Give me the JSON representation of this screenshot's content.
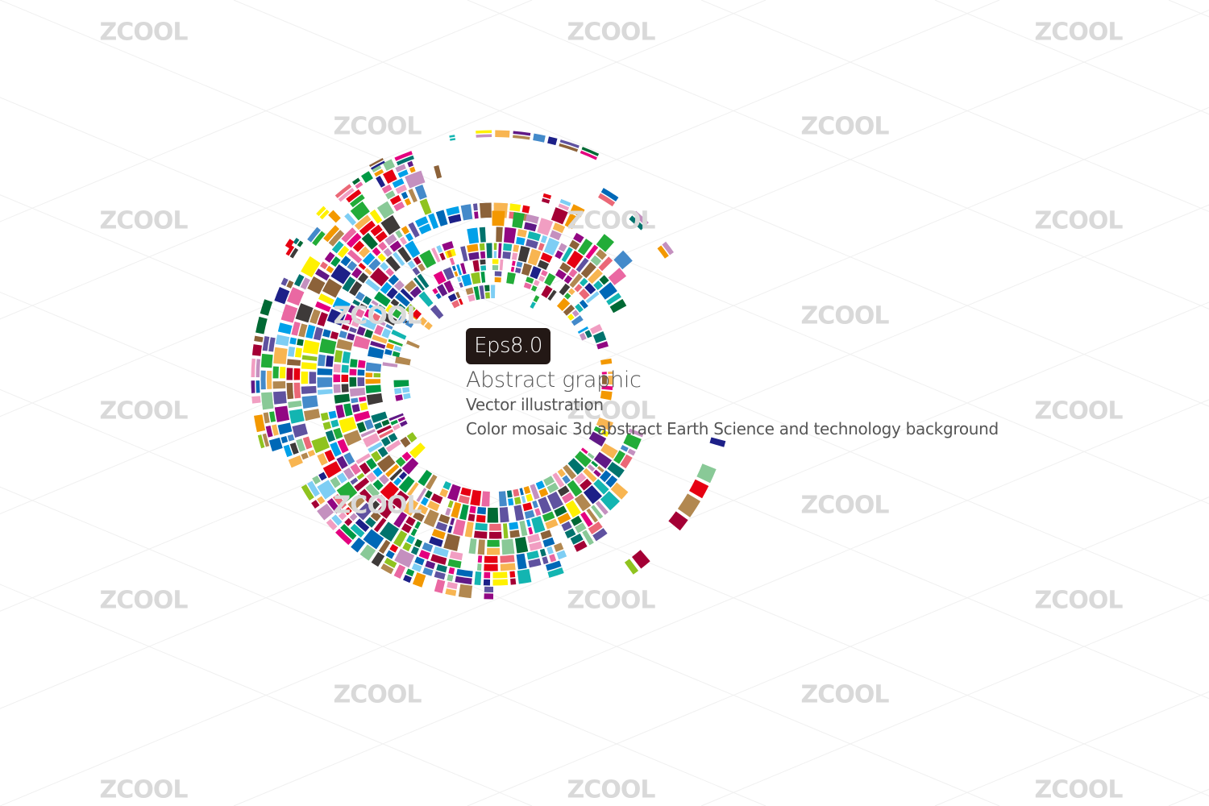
{
  "badge": "Eps8.0",
  "title": "Abstract graphic",
  "subtitle": "Vector illustration",
  "description": "Color mosaic 3d abstract Earth Science and technology background",
  "watermark": "ZCOOL",
  "palette": [
    "#e4007f",
    "#009944",
    "#0068b7",
    "#f39800",
    "#fff100",
    "#00a0e9",
    "#920783",
    "#8fc31f",
    "#e60012",
    "#1d2088",
    "#006934",
    "#a40035",
    "#00736d",
    "#601986",
    "#b28850",
    "#f19ec2",
    "#89c997",
    "#7ecef4",
    "#c490bf",
    "#f8b551",
    "#ea68a2",
    "#448aca",
    "#13b5b1",
    "#eb6877",
    "#22ac38",
    "#5f52a0",
    "#8c6239",
    "#3e3a39"
  ]
}
